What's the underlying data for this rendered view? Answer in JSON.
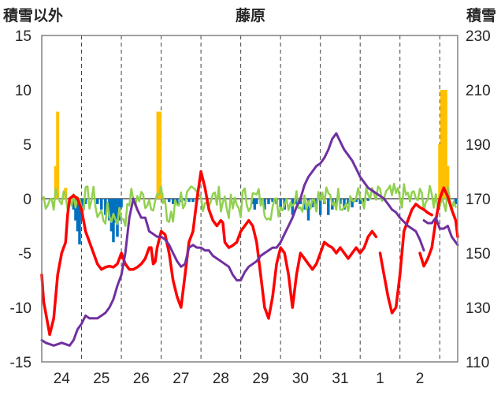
{
  "chart_data": {
    "type": "line",
    "title": "藤原",
    "ylabel_left": "積雪以外",
    "ylabel_right": "積雪",
    "ylim_left": [
      -15,
      15
    ],
    "ylim_right": [
      110,
      230
    ],
    "yticks_left": [
      "15",
      "10",
      "5",
      "0",
      "-5",
      "-10",
      "-15"
    ],
    "yticks_right": [
      "230",
      "210",
      "190",
      "170",
      "150",
      "130",
      "110"
    ],
    "xticks": [
      "24",
      "25",
      "26",
      "27",
      "28",
      "29",
      "30",
      "31",
      "1",
      "2"
    ],
    "x_range_days": [
      0,
      10.45
    ],
    "grid": "vertical dashed at day boundaries, solid zero line",
    "colors": {
      "red": "#ff0000",
      "purple": "#7030a0",
      "green": "#92d050",
      "blue": "#0070c0",
      "orange": "#ffc000",
      "frame": "#808080",
      "zero": "#808080"
    },
    "series": [
      {
        "color_key": "red",
        "axis": "left",
        "x": [
          0,
          0.05,
          0.1,
          0.2,
          0.3,
          0.4,
          0.5,
          0.6,
          0.65,
          0.7,
          0.8,
          0.9,
          1.0,
          1.1,
          1.3,
          1.4,
          1.5,
          1.6,
          1.7,
          1.8,
          1.9,
          2.0,
          2.1,
          2.2,
          2.3,
          2.4,
          2.5,
          2.6,
          2.7,
          2.75,
          2.8,
          2.85,
          2.9,
          3.0,
          3.1,
          3.2,
          3.3,
          3.4,
          3.5,
          3.6,
          3.7,
          3.8,
          3.9,
          4.0,
          4.1,
          4.2,
          4.3,
          4.4,
          4.5,
          4.55,
          4.6,
          4.7,
          4.8,
          4.9,
          5.0,
          5.1,
          5.2,
          5.3,
          5.4,
          5.5,
          5.6,
          5.7,
          5.8,
          5.9,
          6.0,
          6.1,
          6.2,
          6.3,
          6.4,
          6.5,
          6.6,
          6.7,
          6.8,
          6.9,
          7.0,
          7.1,
          7.2,
          7.3,
          7.4,
          7.5,
          7.6,
          7.7,
          7.8,
          7.9,
          8.0,
          8.1,
          8.2,
          8.3,
          8.4
        ],
        "values": [
          -7,
          -9.5,
          -10.5,
          -12.5,
          -11,
          -7,
          -5,
          -4,
          -1.5,
          0,
          0.3,
          0,
          -1,
          -3,
          -5,
          -6,
          -6.5,
          -6.3,
          -6.2,
          -6.3,
          -6,
          -5,
          -6,
          -6.5,
          -6.5,
          -6.3,
          -6,
          -5.5,
          -4.5,
          -4.5,
          -6,
          -5.8,
          -4.5,
          -3,
          -3.3,
          -5,
          -7.5,
          -9,
          -10,
          -7,
          -4,
          -3,
          0,
          2.5,
          1,
          -1,
          -2,
          -2.5,
          -2,
          -2.2,
          -4,
          -4.5,
          -4.3,
          -4,
          -3,
          -2.5,
          -2,
          -2.5,
          -4,
          -7,
          -10,
          -11,
          -9,
          -6,
          -4.5,
          -5,
          -7,
          -10,
          -7,
          -5,
          -5.5,
          -6,
          -6.5,
          -6,
          -5,
          -4,
          -4.3,
          -4.5,
          -5,
          -4.5,
          -5,
          -5.5,
          -5,
          -4.5,
          -5,
          -4.5,
          -3.5,
          -3,
          -3.5
        ],
        "x2": [
          8.5,
          8.6,
          8.7,
          8.8,
          8.9,
          9.0,
          9.1,
          9.2,
          9.3,
          9.4,
          9.5,
          9.6,
          9.7,
          9.8
        ],
        "values2": [
          -5,
          -7,
          -9,
          -10.5,
          -10,
          -7,
          -3,
          -2,
          -1,
          -0.5,
          -0.8,
          -1,
          -1.3,
          -1.5
        ],
        "x3": [
          9.5,
          9.6,
          9.7,
          9.8,
          9.9,
          10.0,
          10.1,
          10.2,
          10.3,
          10.4,
          10.45
        ],
        "values3": [
          -5,
          -6.2,
          -5.5,
          -4.5,
          -2,
          0,
          1,
          0.2,
          -1,
          -2,
          -3.5
        ]
      },
      {
        "color_key": "purple",
        "axis": "right",
        "x": [
          0,
          0.1,
          0.3,
          0.5,
          0.7,
          0.8,
          0.9,
          1.0,
          1.1,
          1.2,
          1.4,
          1.6,
          1.7,
          1.8,
          1.9,
          2.0,
          2.1,
          2.2,
          2.3,
          2.4,
          2.5,
          2.6,
          2.7,
          2.8,
          2.9,
          3.0,
          3.1,
          3.2,
          3.3,
          3.4,
          3.5,
          3.6,
          3.7,
          3.8,
          3.9,
          4.0,
          4.1,
          4.2,
          4.3,
          4.4,
          4.5,
          4.6,
          4.7,
          4.8,
          4.9,
          5.0,
          5.1,
          5.2,
          5.3,
          5.4,
          5.5,
          5.6,
          5.7,
          5.8,
          5.9,
          6.0,
          6.1,
          6.2,
          6.3,
          6.4,
          6.5,
          6.6,
          6.7,
          6.8,
          6.9,
          7.0,
          7.1,
          7.2,
          7.3,
          7.4,
          7.5,
          7.6,
          7.7,
          7.8,
          7.9,
          8.0,
          8.1,
          8.2,
          8.3,
          8.4,
          8.5,
          8.6,
          8.7,
          8.8,
          8.9,
          9.0,
          9.2,
          9.4,
          9.5,
          9.6
        ],
        "values": [
          118,
          117,
          116,
          117,
          116,
          118,
          122,
          124,
          127,
          126,
          126,
          128,
          130,
          133,
          138,
          142,
          150,
          163,
          170,
          166,
          163,
          163,
          158,
          157,
          156,
          156,
          155,
          153,
          150,
          147,
          145,
          146,
          152,
          153,
          152,
          152,
          151,
          151,
          149,
          148,
          147,
          146,
          145,
          142,
          140,
          140,
          143,
          145,
          146,
          147,
          149,
          150,
          151,
          152,
          152,
          154,
          157,
          160,
          163,
          167,
          170,
          175,
          178,
          180,
          182,
          183,
          185,
          188,
          192,
          194,
          191,
          188,
          186,
          184,
          181,
          178,
          176,
          174,
          173,
          172,
          171,
          170,
          168,
          166,
          165,
          163,
          160,
          158,
          155,
          151
        ],
        "x2": [
          9.6,
          9.7,
          9.8,
          9.9,
          10.0,
          10.1,
          10.2,
          10.3,
          10.45
        ],
        "values2": [
          162,
          161,
          161,
          163,
          159,
          159,
          160,
          156,
          153
        ]
      },
      {
        "color_key": "green",
        "axis": "left",
        "note": "noisy line fluctuating around zero",
        "x_range": [
          0,
          10.45
        ]
      }
    ],
    "bars": [
      {
        "color_key": "blue",
        "axis": "left",
        "x": [
          0.8,
          0.85,
          0.9,
          0.95,
          1.0,
          1.05,
          1.1,
          1.4,
          1.5,
          1.6,
          1.7,
          1.75,
          1.8,
          1.85,
          1.9,
          1.95,
          2.0,
          3.2,
          3.3,
          3.4,
          3.5,
          3.6,
          3.7,
          3.8,
          3.9,
          5.3,
          5.35,
          5.4,
          5.5,
          5.6,
          5.7,
          5.8,
          5.9,
          6.0,
          6.1,
          6.3,
          6.4,
          6.5,
          6.6,
          6.7,
          6.8,
          6.9,
          7.0,
          7.1,
          7.2,
          7.3,
          7.4,
          7.5,
          7.6,
          7.7,
          7.8,
          7.9,
          8.0,
          8.1,
          8.2,
          10.4
        ],
        "values": [
          -1,
          -2,
          -3,
          -4.2,
          -2,
          -1,
          -0.5,
          -0.5,
          -1,
          -1.5,
          -2,
          -3,
          -4,
          -2.2,
          -3.5,
          -2,
          -0.8,
          -0.3,
          -0.5,
          -0.5,
          -0.3,
          -0.2,
          -0.3,
          -0.3,
          -0.2,
          -0.5,
          -1,
          -0.5,
          -0.3,
          -1,
          -0.5,
          -0.3,
          -0.5,
          -0.8,
          -1,
          -1.5,
          -0.5,
          -0.5,
          -1,
          -2,
          -0.8,
          -1,
          -1.5,
          -0.5,
          -1.5,
          -1,
          -0.5,
          -0.5,
          -1,
          -0.5,
          -0.8,
          -0.3,
          -0.5,
          -0.3,
          -0.2,
          -0.5
        ]
      },
      {
        "color_key": "orange",
        "axis": "left",
        "x": [
          0.35,
          0.4,
          0.6,
          2.92,
          2.97,
          3.02,
          10.0,
          10.05,
          10.1,
          10.15,
          10.2
        ],
        "values": [
          3,
          8,
          1,
          8,
          8,
          0.5,
          5,
          10,
          10,
          10,
          3
        ]
      }
    ]
  }
}
